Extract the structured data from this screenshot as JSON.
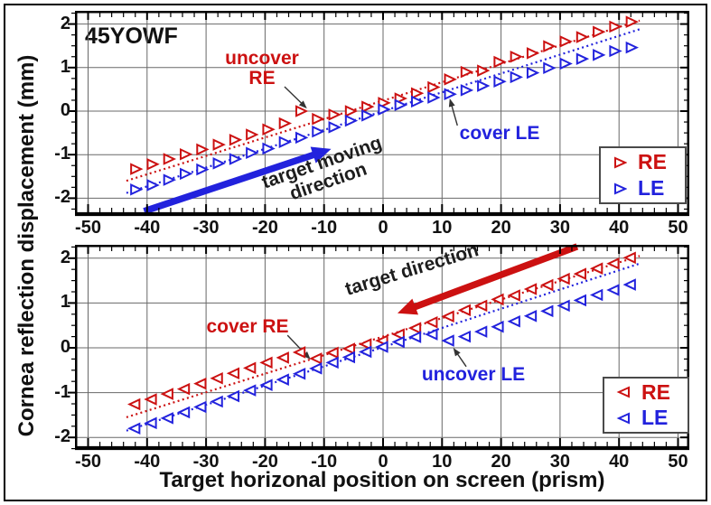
{
  "figure": {
    "subject_label": "45YOWF",
    "x_axis_title": "Target horizonal position on screen (prism)",
    "y_axis_title": "Cornea reflection displacement (mm)"
  },
  "colors": {
    "re": "#cc1111",
    "le": "#2222dd",
    "grid": "#686868",
    "axis": "#000000",
    "pointer": "#333333",
    "text": "#111111"
  },
  "legend": {
    "re_label": "RE",
    "le_label": "LE"
  },
  "annotations": {
    "top": {
      "uncover_line1": "uncover",
      "uncover_line2": "RE",
      "cover": "cover LE",
      "arrow_label_line1": "target moving",
      "arrow_label_line2": "direction"
    },
    "bottom": {
      "cover": "cover RE",
      "uncover": "uncover LE",
      "arrow_label": "target direction"
    }
  },
  "chart_data": [
    {
      "id": "top",
      "type": "scatter",
      "marker": "triangle-right",
      "title": "",
      "xlabel": "Target horizonal position on screen (prism)",
      "ylabel": "Cornea reflection displacement (mm)",
      "x_ticks": [
        -50,
        -40,
        -30,
        -20,
        -10,
        0,
        10,
        20,
        30,
        40,
        50
      ],
      "y_ticks": [
        -2,
        -1,
        0,
        1,
        2
      ],
      "x_minor_step": 2,
      "y_minor_step": 0.25,
      "xlim": [
        -52.2,
        51.9
      ],
      "ylim": [
        -2.41,
        2.3
      ],
      "grid": true,
      "legend_position": "lower right",
      "series": [
        {
          "name": "RE",
          "color": "re",
          "points": [
            [
              -42,
              -1.33
            ],
            [
              -39.2,
              -1.22
            ],
            [
              -36.4,
              -1.1
            ],
            [
              -33.6,
              -0.99
            ],
            [
              -30.8,
              -0.88
            ],
            [
              -28,
              -0.77
            ],
            [
              -25.2,
              -0.66
            ],
            [
              -22.4,
              -0.54
            ],
            [
              -19.6,
              -0.42
            ],
            [
              -16.8,
              -0.28
            ],
            [
              -14,
              0.0
            ],
            [
              -11.2,
              -0.18
            ],
            [
              -8.4,
              -0.08
            ],
            [
              -5.6,
              0.0
            ],
            [
              -2.8,
              0.1
            ],
            [
              0,
              0.19
            ],
            [
              2.8,
              0.29
            ],
            [
              5.6,
              0.41
            ],
            [
              8.4,
              0.55
            ],
            [
              11.2,
              0.73
            ],
            [
              14,
              0.9
            ],
            [
              16.8,
              0.93
            ],
            [
              19.6,
              1.13
            ],
            [
              22.4,
              1.25
            ],
            [
              25.2,
              1.33
            ],
            [
              28,
              1.49
            ],
            [
              30.8,
              1.6
            ],
            [
              33.6,
              1.7
            ],
            [
              36.4,
              1.82
            ],
            [
              39.2,
              1.94
            ],
            [
              42,
              2.05
            ]
          ]
        },
        {
          "name": "LE",
          "color": "le",
          "points": [
            [
              -42,
              -1.8
            ],
            [
              -39.2,
              -1.7
            ],
            [
              -36.4,
              -1.58
            ],
            [
              -33.6,
              -1.44
            ],
            [
              -30.8,
              -1.34
            ],
            [
              -28,
              -1.2
            ],
            [
              -25.2,
              -1.1
            ],
            [
              -22.4,
              -0.96
            ],
            [
              -19.6,
              -0.86
            ],
            [
              -16.8,
              -0.71
            ],
            [
              -14,
              -0.61
            ],
            [
              -11.2,
              -0.47
            ],
            [
              -8.4,
              -0.37
            ],
            [
              -5.6,
              -0.22
            ],
            [
              -2.8,
              -0.1
            ],
            [
              0,
              0.04
            ],
            [
              2.8,
              0.14
            ],
            [
              5.6,
              0.22
            ],
            [
              8.4,
              0.31
            ],
            [
              11.2,
              0.39
            ],
            [
              14,
              0.48
            ],
            [
              16.8,
              0.58
            ],
            [
              19.6,
              0.68
            ],
            [
              22.4,
              0.78
            ],
            [
              25.2,
              0.88
            ],
            [
              28,
              0.99
            ],
            [
              30.8,
              1.09
            ],
            [
              33.6,
              1.2
            ],
            [
              36.4,
              1.29
            ],
            [
              39.2,
              1.38
            ],
            [
              42,
              1.46
            ]
          ]
        }
      ],
      "fit_lines": [
        {
          "series": "RE",
          "color": "re",
          "x1": -43.5,
          "y1": -1.6,
          "x2": 43.5,
          "y2": 2.08
        },
        {
          "series": "LE",
          "color": "le",
          "x1": -43.5,
          "y1": -1.88,
          "x2": 43.5,
          "y2": 1.88
        }
      ],
      "target_arrow": {
        "color": "le",
        "x1": -40.5,
        "y1": -2.3,
        "x2": -8.8,
        "y2": -0.87
      },
      "pointer_arrows": [
        {
          "label": "uncover RE",
          "x1": -16.7,
          "y1": 0.56,
          "x2": -12.9,
          "y2": 0.06
        },
        {
          "label": "cover LE",
          "x1": 12.6,
          "y1": -0.33,
          "x2": 11.3,
          "y2": 0.29
        }
      ],
      "events": {
        "uncover_RE_at_x": -13,
        "cover_LE_at_x": 11
      }
    },
    {
      "id": "bottom",
      "type": "scatter",
      "marker": "triangle-left",
      "title": "",
      "xlabel": "Target horizonal position on screen (prism)",
      "ylabel": "Cornea reflection displacement (mm)",
      "x_ticks": [
        -50,
        -40,
        -30,
        -20,
        -10,
        0,
        10,
        20,
        30,
        40,
        50
      ],
      "y_ticks": [
        -2,
        -1,
        0,
        1,
        2
      ],
      "x_minor_step": 2,
      "y_minor_step": 0.25,
      "xlim": [
        -52.2,
        51.9
      ],
      "ylim": [
        -2.28,
        2.3
      ],
      "grid": true,
      "legend_position": "lower right",
      "series": [
        {
          "name": "RE",
          "color": "re",
          "points": [
            [
              -42,
              -1.26
            ],
            [
              -39.2,
              -1.15
            ],
            [
              -36.4,
              -1.03
            ],
            [
              -33.6,
              -0.92
            ],
            [
              -30.8,
              -0.8
            ],
            [
              -28,
              -0.68
            ],
            [
              -25.2,
              -0.57
            ],
            [
              -22.4,
              -0.45
            ],
            [
              -19.6,
              -0.33
            ],
            [
              -16.8,
              -0.22
            ],
            [
              -14,
              -0.1
            ],
            [
              -11.2,
              -0.24
            ],
            [
              -8.4,
              -0.11
            ],
            [
              -5.6,
              -0.02
            ],
            [
              -2.8,
              0.08
            ],
            [
              0,
              0.16
            ],
            [
              2.8,
              0.3
            ],
            [
              5.6,
              0.44
            ],
            [
              8.4,
              0.57
            ],
            [
              11.2,
              0.7
            ],
            [
              14,
              0.84
            ],
            [
              16.8,
              0.94
            ],
            [
              19.6,
              1.08
            ],
            [
              22.4,
              1.17
            ],
            [
              25.2,
              1.31
            ],
            [
              28,
              1.4
            ],
            [
              30.8,
              1.54
            ],
            [
              33.6,
              1.65
            ],
            [
              36.4,
              1.77
            ],
            [
              39.2,
              1.88
            ],
            [
              42,
              2.01
            ]
          ]
        },
        {
          "name": "LE",
          "color": "le",
          "points": [
            [
              -42,
              -1.8
            ],
            [
              -39.2,
              -1.68
            ],
            [
              -36.4,
              -1.57
            ],
            [
              -33.6,
              -1.44
            ],
            [
              -30.8,
              -1.32
            ],
            [
              -28,
              -1.2
            ],
            [
              -25.2,
              -1.08
            ],
            [
              -22.4,
              -0.95
            ],
            [
              -19.6,
              -0.83
            ],
            [
              -16.8,
              -0.71
            ],
            [
              -14,
              -0.58
            ],
            [
              -11.2,
              -0.46
            ],
            [
              -8.4,
              -0.33
            ],
            [
              -5.6,
              -0.21
            ],
            [
              -2.8,
              -0.09
            ],
            [
              0,
              0.02
            ],
            [
              2.8,
              0.13
            ],
            [
              5.6,
              0.24
            ],
            [
              8.4,
              0.3
            ],
            [
              11.2,
              0.16
            ],
            [
              14,
              0.25
            ],
            [
              16.8,
              0.36
            ],
            [
              19.6,
              0.47
            ],
            [
              22.4,
              0.59
            ],
            [
              25.2,
              0.71
            ],
            [
              28,
              0.82
            ],
            [
              30.8,
              0.94
            ],
            [
              33.6,
              1.06
            ],
            [
              36.4,
              1.18
            ],
            [
              39.2,
              1.29
            ],
            [
              42,
              1.41
            ]
          ]
        }
      ],
      "fit_lines": [
        {
          "series": "RE",
          "color": "re",
          "x1": -43.5,
          "y1": -1.55,
          "x2": 43.5,
          "y2": 2.05
        },
        {
          "series": "LE",
          "color": "le",
          "x1": -43.5,
          "y1": -1.85,
          "x2": 43.5,
          "y2": 1.88
        }
      ],
      "target_arrow": {
        "color": "re",
        "x1": 32.9,
        "y1": 2.26,
        "x2": 2.45,
        "y2": 0.77
      },
      "pointer_arrows": [
        {
          "label": "cover RE",
          "x1": -16.2,
          "y1": 0.28,
          "x2": -12.3,
          "y2": -0.26
        },
        {
          "label": "uncover LE",
          "x1": 14.1,
          "y1": -0.42,
          "x2": 11.9,
          "y2": 0.0
        }
      ],
      "events": {
        "cover_RE_at_x": -11,
        "uncover_LE_at_x": 11
      }
    }
  ]
}
